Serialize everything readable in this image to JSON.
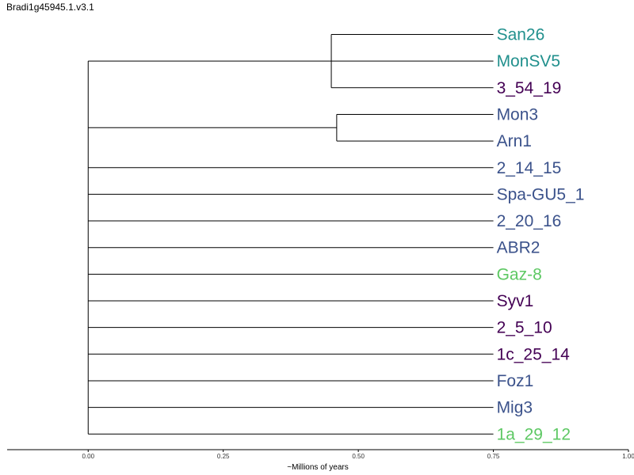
{
  "chart_data": {
    "type": "dendrogram",
    "title": "Bradi1g45945.1.v3.1",
    "xlabel": "~Millions of years",
    "xlim": [
      -0.15,
      1.0
    ],
    "xticks": [
      {
        "value": 0.0,
        "label": "0.00"
      },
      {
        "value": 0.25,
        "label": "0.25"
      },
      {
        "value": 0.5,
        "label": "0.50"
      },
      {
        "value": 0.75,
        "label": "0.75"
      },
      {
        "value": 1.0,
        "label": "1.00"
      }
    ],
    "tips": [
      {
        "name": "San26",
        "color": "#21908d"
      },
      {
        "name": "MonSV5",
        "color": "#21908d"
      },
      {
        "name": "3_54_19",
        "color": "#440154"
      },
      {
        "name": "Mon3",
        "color": "#3b528b"
      },
      {
        "name": "Arn1",
        "color": "#3b528b"
      },
      {
        "name": "2_14_15",
        "color": "#3b528b"
      },
      {
        "name": "Spa-GU5_1",
        "color": "#3b528b"
      },
      {
        "name": "2_20_16",
        "color": "#3b528b"
      },
      {
        "name": "ABR2",
        "color": "#3b528b"
      },
      {
        "name": "Gaz-8",
        "color": "#5dc863"
      },
      {
        "name": "Syv1",
        "color": "#440154"
      },
      {
        "name": "2_5_10",
        "color": "#440154"
      },
      {
        "name": "1c_25_14",
        "color": "#440154"
      },
      {
        "name": "Foz1",
        "color": "#3b528b"
      },
      {
        "name": "Mig3",
        "color": "#3b528b"
      },
      {
        "name": "1a_29_12",
        "color": "#5dc863"
      }
    ],
    "clades": [
      {
        "node_age": 0.45,
        "tips": [
          "San26",
          "MonSV5",
          "3_54_19"
        ]
      },
      {
        "node_age": 0.46,
        "tips": [
          "Mon3",
          "Arn1"
        ]
      }
    ],
    "tip_age": 0.75,
    "root_age": 0.0
  }
}
